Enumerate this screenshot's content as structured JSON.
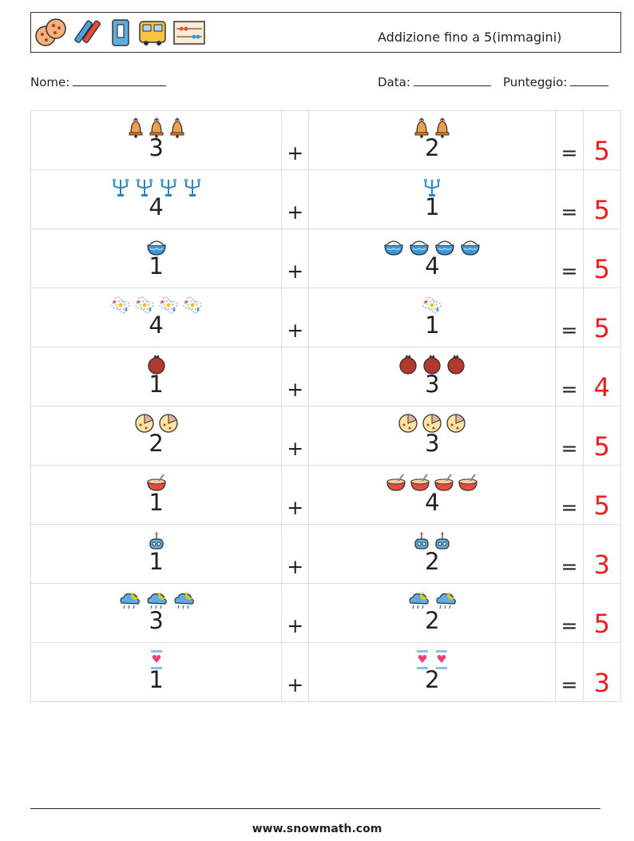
{
  "header": {
    "title": "Addizione fino a 5(immagini)",
    "icons": [
      "cookies-icon",
      "crayons-icon",
      "sharpener-icon",
      "school-bus-icon",
      "abacus-icon"
    ]
  },
  "info": {
    "name_label": "Nome:",
    "date_label": "Data:",
    "score_label": "Punteggio:"
  },
  "problems": [
    {
      "left": "3",
      "left_icon": "bell-icon",
      "right": "2",
      "right_icon": "bell-icon",
      "plus": "+",
      "equals": "=",
      "answer": "5"
    },
    {
      "left": "4",
      "left_icon": "candelabra-icon",
      "right": "1",
      "right_icon": "candelabra-icon",
      "plus": "+",
      "equals": "=",
      "answer": "5"
    },
    {
      "left": "1",
      "left_icon": "bowl-icon",
      "right": "4",
      "right_icon": "bowl-icon",
      "plus": "+",
      "equals": "=",
      "answer": "5"
    },
    {
      "left": "4",
      "left_icon": "atom-icon",
      "right": "1",
      "right_icon": "atom-icon",
      "plus": "+",
      "equals": "=",
      "answer": "5"
    },
    {
      "left": "1",
      "left_icon": "pomegranate-icon",
      "right": "3",
      "right_icon": "pomegranate-icon",
      "plus": "+",
      "equals": "=",
      "answer": "4"
    },
    {
      "left": "2",
      "left_icon": "pizza-icon",
      "right": "3",
      "right_icon": "pizza-icon",
      "plus": "+",
      "equals": "=",
      "answer": "5"
    },
    {
      "left": "1",
      "left_icon": "soup-bowl-icon",
      "right": "4",
      "right_icon": "soup-bowl-icon",
      "plus": "+",
      "equals": "=",
      "answer": "5"
    },
    {
      "left": "1",
      "left_icon": "robot-icon",
      "right": "2",
      "right_icon": "robot-icon",
      "plus": "+",
      "equals": "=",
      "answer": "3"
    },
    {
      "left": "3",
      "left_icon": "rain-cloud-icon",
      "right": "2",
      "right_icon": "rain-cloud-icon",
      "plus": "+",
      "equals": "=",
      "answer": "5"
    },
    {
      "left": "1",
      "left_icon": "heart-jar-icon",
      "right": "2",
      "right_icon": "heart-jar-icon",
      "plus": "+",
      "equals": "=",
      "answer": "3"
    }
  ],
  "footer": {
    "url": "www.snowmath.com"
  }
}
